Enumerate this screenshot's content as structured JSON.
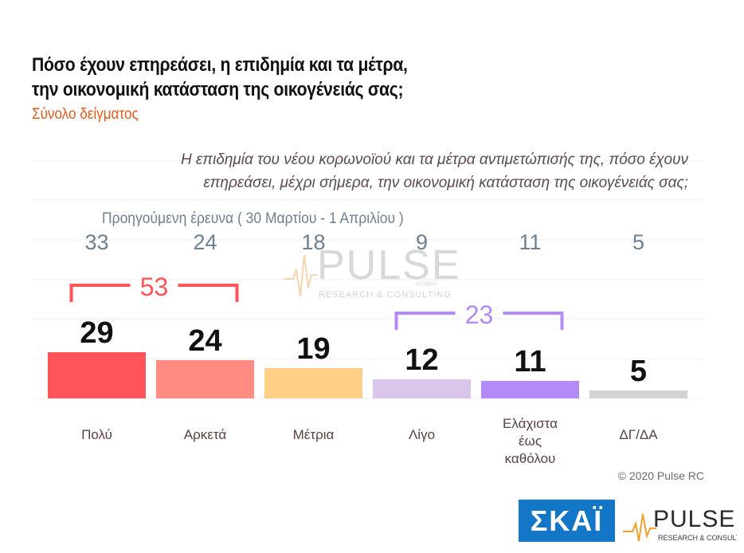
{
  "title_line1": "Πόσο έχουν επηρεάσει, η επιδημία και τα μέτρα,",
  "title_line2": "την οικονομική κατάσταση της οικογένειάς σας;",
  "subtitle": "Σύνολο δείγματος",
  "question_line1": "Η επιδημία του νέου κορωνοϊού και τα μέτρα αντιμετώπισής της, πόσο έχουν",
  "question_line2": "επηρεάσει, μέχρι σήμερα, την οικονομική κατάσταση της οικογένειάς σας;",
  "previous_label": "Προηγούμενη έρευνα   ( 30 Μαρτίου - 1 Απριλίου )",
  "copyright": "© 2020 Pulse RC",
  "watermark": {
    "brand": "PULSE",
    "tagline": "RESEARCH & CONSULTING",
    "small": "KOSMOS"
  },
  "logos": {
    "broadcaster": "ΣΚΑΪ",
    "pollster": "PULSE",
    "pollster_tagline": "RESEARCH & CONSULTING"
  },
  "chart_data": {
    "type": "bar",
    "categories": [
      "Πολύ",
      "Αρκετά",
      "Μέτρια",
      "Λίγο",
      "Ελάχιστα έως καθόλου",
      "ΔΓ/ΔΑ"
    ],
    "category_lines": [
      [
        "Πολύ"
      ],
      [
        "Αρκετά"
      ],
      [
        "Μέτρια"
      ],
      [
        "Λίγο"
      ],
      [
        "Ελάχιστα",
        "έως",
        "καθόλου"
      ],
      [
        "ΔΓ/ΔΑ"
      ]
    ],
    "values": [
      29,
      24,
      19,
      12,
      11,
      5
    ],
    "previous_values": [
      33,
      24,
      18,
      9,
      11,
      5
    ],
    "colors": [
      "#ff5459",
      "#ff8b82",
      "#ffcf87",
      "#d9c6ea",
      "#b48af7",
      "#d3d3d3"
    ],
    "groups": [
      {
        "label": "53",
        "from": 0,
        "to": 1,
        "color": "#ff5459"
      },
      {
        "label": "23",
        "from": 3,
        "to": 4,
        "color": "#b48af7"
      }
    ],
    "ylim": [
      0,
      100
    ],
    "grid": true
  }
}
